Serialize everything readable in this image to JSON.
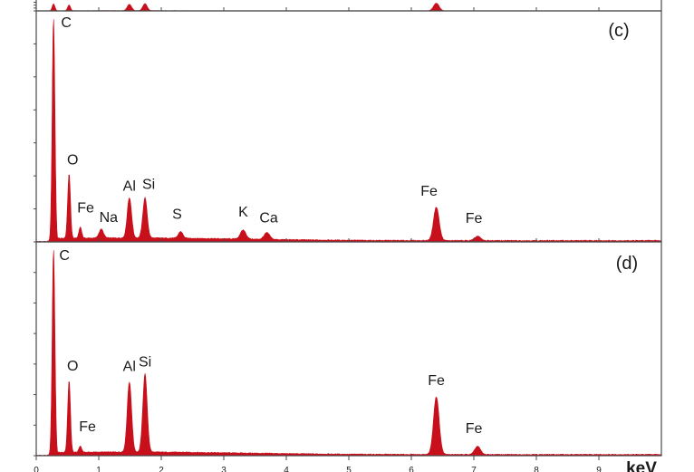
{
  "chart_data": {
    "type": "area",
    "x_unit": "keV",
    "xlim": [
      0,
      10
    ],
    "x_ticks": [
      0,
      1,
      2,
      3,
      4,
      5,
      6,
      7,
      8,
      9
    ],
    "color": "#c8101c",
    "panels": [
      {
        "label": "",
        "partial": true,
        "peaks": [
          {
            "element": "",
            "energy": 0.277,
            "height": 0.55
          },
          {
            "element": "",
            "energy": 0.525,
            "height": 0.45
          },
          {
            "element": "",
            "energy": 1.49,
            "height": 0.5
          },
          {
            "element": "",
            "energy": 1.74,
            "height": 0.55
          },
          {
            "element": "",
            "energy": 6.4,
            "height": 0.6
          }
        ]
      },
      {
        "label": "(c)",
        "peaks": [
          {
            "element": "C",
            "energy": 0.277,
            "height": 1.0
          },
          {
            "element": "O",
            "energy": 0.525,
            "height": 0.29
          },
          {
            "element": "Fe",
            "energy": 0.705,
            "height": 0.05
          },
          {
            "element": "Na",
            "energy": 1.04,
            "height": 0.04
          },
          {
            "element": "Al",
            "energy": 1.49,
            "height": 0.18
          },
          {
            "element": "Si",
            "energy": 1.74,
            "height": 0.18
          },
          {
            "element": "S",
            "energy": 2.31,
            "height": 0.03
          },
          {
            "element": "K",
            "energy": 3.31,
            "height": 0.04
          },
          {
            "element": "Ca",
            "energy": 3.69,
            "height": 0.03
          },
          {
            "element": "Fe",
            "energy": 6.4,
            "height": 0.15
          },
          {
            "element": "Fe",
            "energy": 7.06,
            "height": 0.02
          }
        ]
      },
      {
        "label": "(d)",
        "peaks": [
          {
            "element": "C",
            "energy": 0.277,
            "height": 1.0
          },
          {
            "element": "O",
            "energy": 0.525,
            "height": 0.35
          },
          {
            "element": "Fe",
            "energy": 0.705,
            "height": 0.03
          },
          {
            "element": "Al",
            "energy": 1.49,
            "height": 0.34
          },
          {
            "element": "Si",
            "energy": 1.74,
            "height": 0.38
          },
          {
            "element": "Fe",
            "energy": 6.4,
            "height": 0.28
          },
          {
            "element": "Fe",
            "energy": 7.06,
            "height": 0.04
          }
        ]
      }
    ]
  }
}
